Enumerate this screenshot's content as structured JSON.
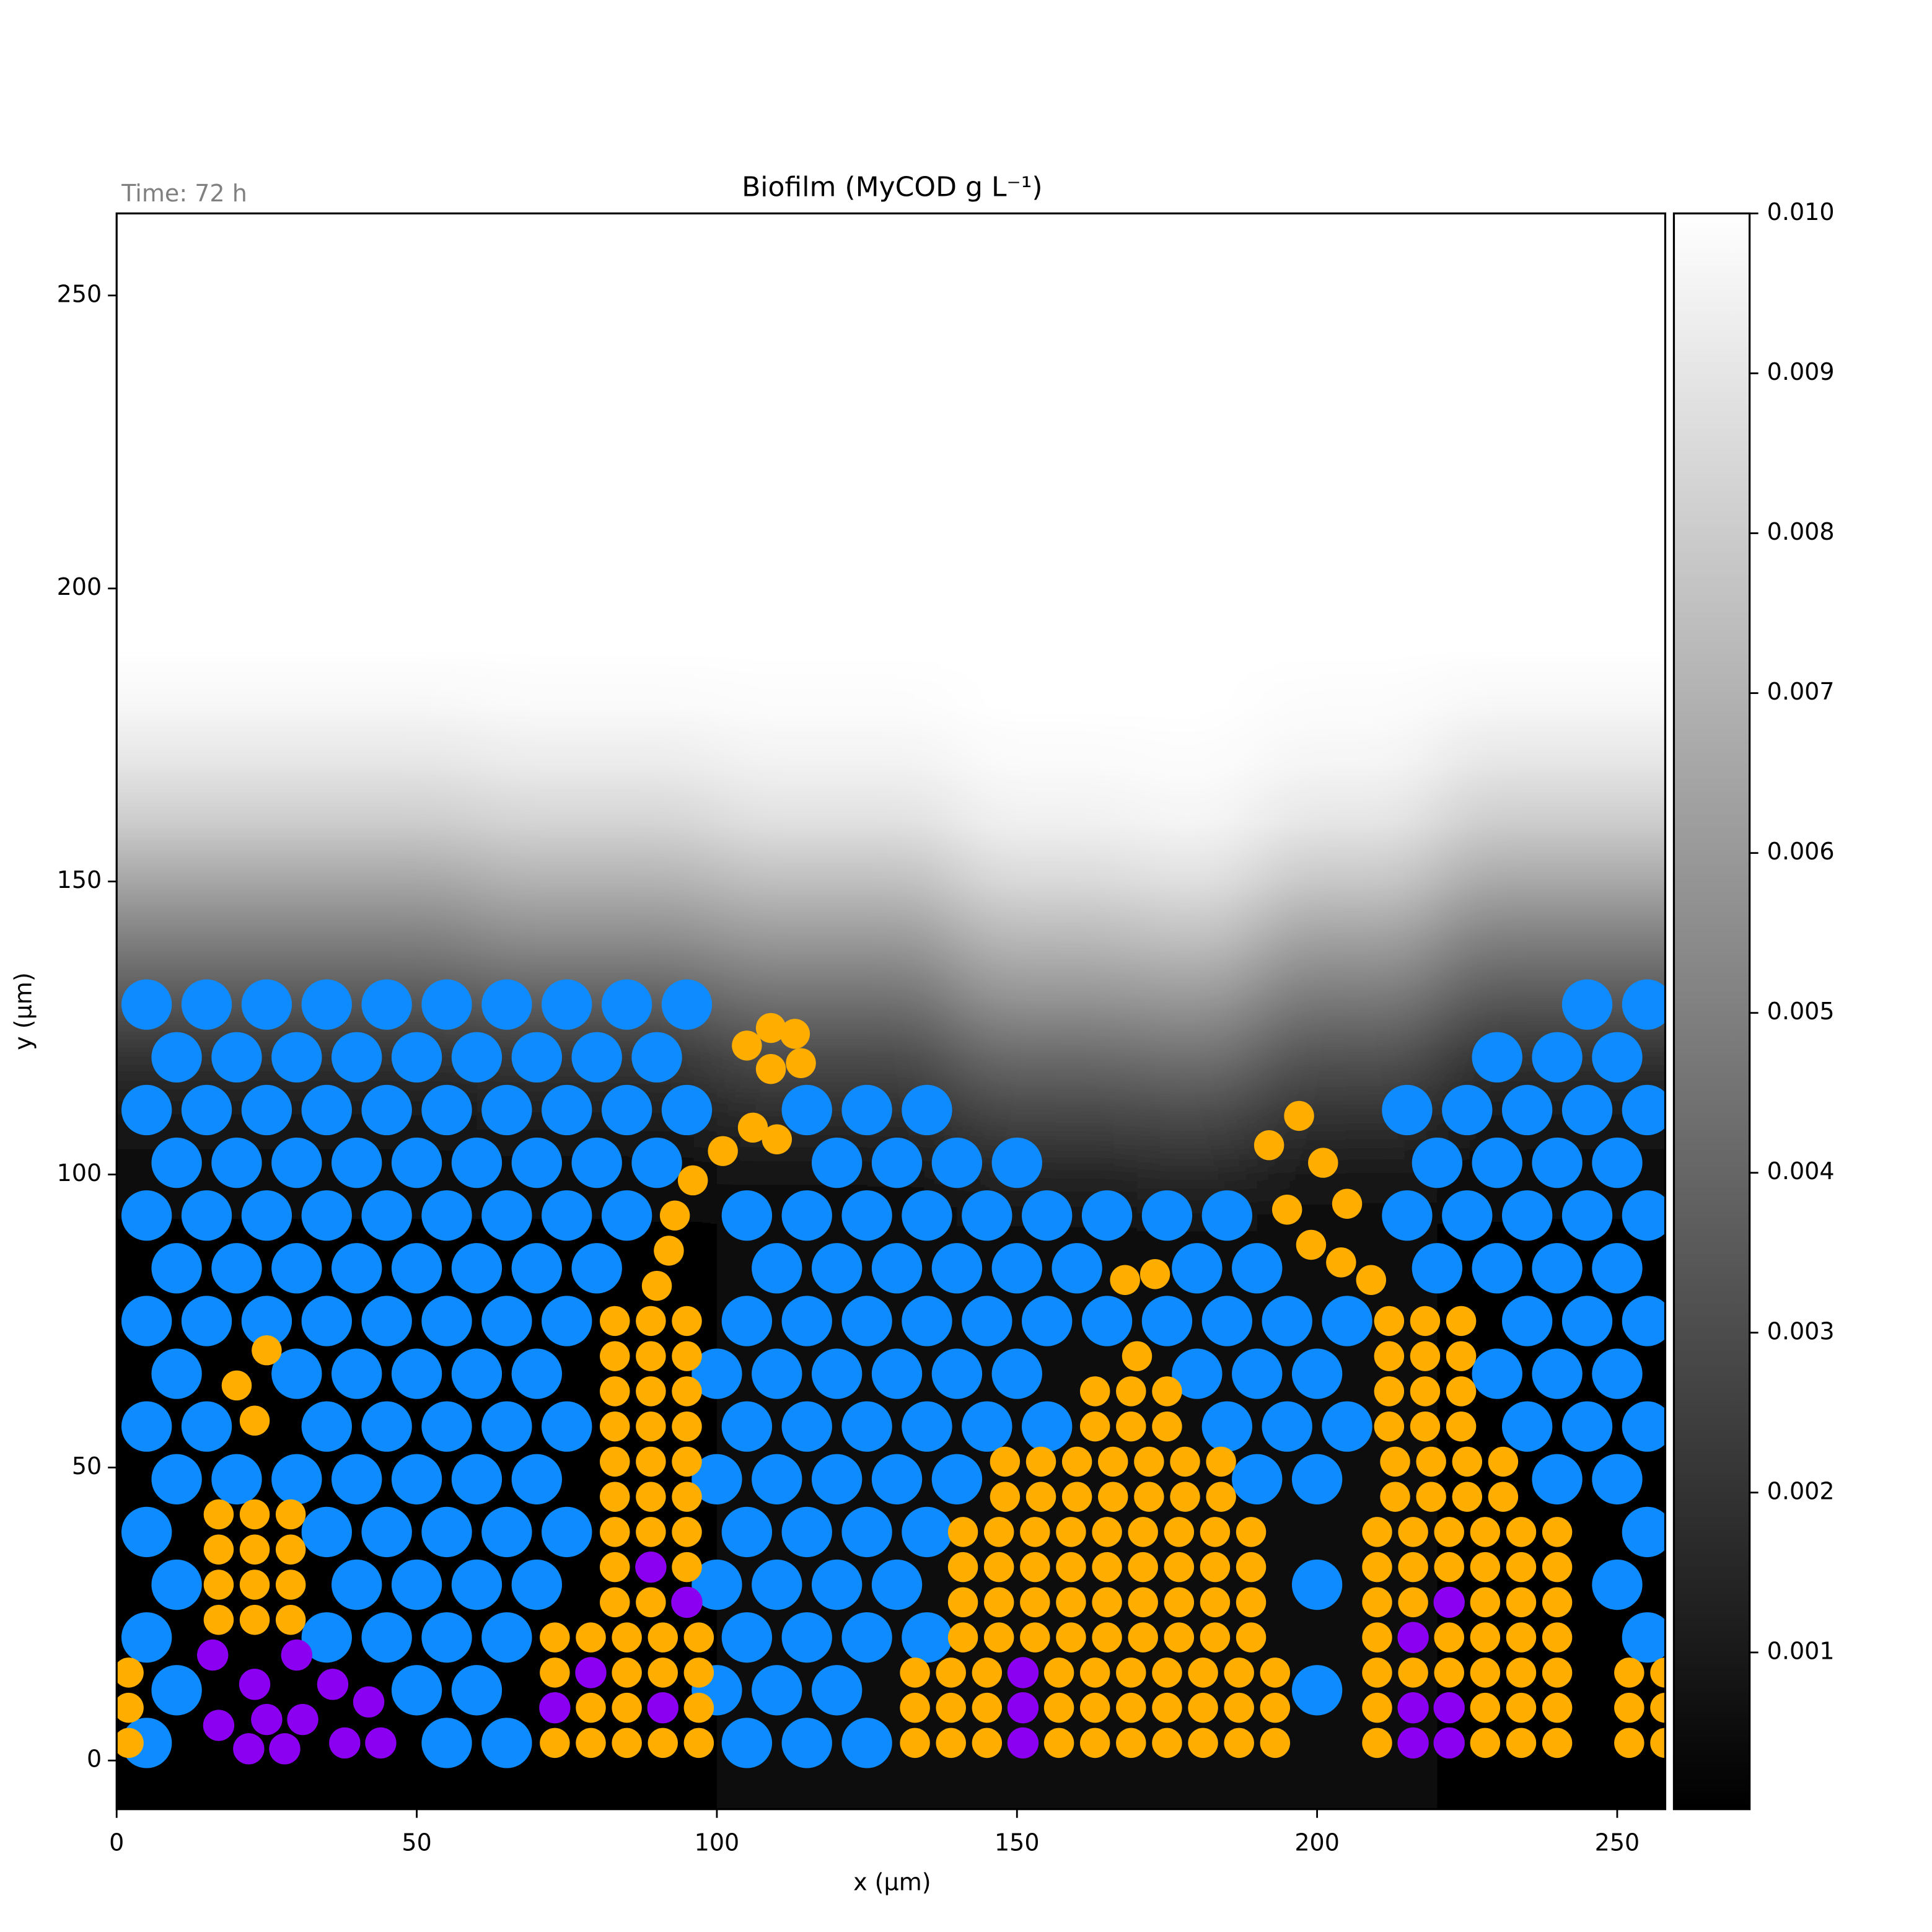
{
  "chart_data": {
    "type": "scatter",
    "title": "Biofilm (MyCOD g L⁻¹)",
    "annotation": "Time: 72 h",
    "xlabel": "x (µm)",
    "ylabel": "y (µm)",
    "xlim": [
      0,
      258
    ],
    "ylim": [
      -8.3,
      264
    ],
    "xticks": [
      0,
      50,
      100,
      150,
      200,
      250
    ],
    "yticks": [
      0,
      50,
      100,
      150,
      200,
      250
    ],
    "heatmap": {
      "x": [
        0,
        40,
        80,
        120,
        160,
        180,
        200,
        240,
        258
      ],
      "y": [
        90,
        100,
        110,
        120,
        130,
        140,
        150,
        160,
        170,
        180,
        190
      ],
      "values": [
        [
          0.0002,
          0.0005,
          0.001,
          0.002,
          0.0035,
          0.005,
          0.0065,
          0.008,
          0.009,
          0.0097,
          0.01
        ],
        [
          0.0002,
          0.0005,
          0.001,
          0.002,
          0.0035,
          0.005,
          0.0065,
          0.008,
          0.009,
          0.0097,
          0.01
        ],
        [
          0.0002,
          0.0005,
          0.0012,
          0.0022,
          0.0038,
          0.0055,
          0.007,
          0.0083,
          0.0092,
          0.0098,
          0.01
        ],
        [
          0.0003,
          0.0008,
          0.0018,
          0.003,
          0.0045,
          0.006,
          0.0075,
          0.0088,
          0.0095,
          0.0099,
          0.01
        ],
        [
          0.0006,
          0.0015,
          0.0028,
          0.0042,
          0.0058,
          0.0072,
          0.0085,
          0.0094,
          0.0098,
          0.01,
          0.01
        ],
        [
          0.0007,
          0.0017,
          0.003,
          0.0045,
          0.006,
          0.0075,
          0.0088,
          0.0096,
          0.0099,
          0.01,
          0.01
        ],
        [
          0.0004,
          0.001,
          0.002,
          0.0033,
          0.0048,
          0.0063,
          0.0078,
          0.009,
          0.0096,
          0.0099,
          0.01
        ],
        [
          0.0002,
          0.0005,
          0.001,
          0.002,
          0.0035,
          0.005,
          0.0066,
          0.008,
          0.009,
          0.0097,
          0.01
        ],
        [
          0.0002,
          0.0005,
          0.001,
          0.002,
          0.0035,
          0.005,
          0.0066,
          0.008,
          0.009,
          0.0097,
          0.01
        ]
      ]
    },
    "colorbar": {
      "colormap": "gray",
      "clim": [
        2e-05,
        0.01
      ],
      "ticks": [
        0.001,
        0.002,
        0.003,
        0.004,
        0.005,
        0.006,
        0.007,
        0.008,
        0.009,
        {
          "value": 0.01,
          "label": "0.010"
        }
      ]
    },
    "series": [
      {
        "color": "#0d8bff",
        "size": 4.2,
        "x": [
          5,
          55,
          65,
          105,
          115,
          125,
          10,
          50,
          60,
          100,
          110,
          120,
          200,
          5,
          35,
          45,
          55,
          65,
          105,
          115,
          125,
          135,
          255,
          10,
          40,
          50,
          60,
          70,
          100,
          110,
          120,
          130,
          200,
          250,
          5,
          35,
          45,
          55,
          65,
          75,
          105,
          115,
          125,
          135,
          255,
          10,
          20,
          30,
          40,
          50,
          60,
          70,
          100,
          110,
          120,
          130,
          140,
          190,
          200,
          240,
          250,
          5,
          15,
          35,
          45,
          55,
          65,
          75,
          105,
          115,
          125,
          135,
          145,
          155,
          185,
          195,
          205,
          235,
          245,
          255,
          10,
          30,
          40,
          50,
          60,
          70,
          100,
          110,
          120,
          130,
          140,
          150,
          180,
          190,
          200,
          230,
          240,
          250,
          5,
          15,
          25,
          35,
          45,
          55,
          65,
          75,
          105,
          115,
          125,
          135,
          145,
          155,
          165,
          175,
          185,
          195,
          205,
          235,
          245,
          255,
          10,
          20,
          30,
          40,
          50,
          60,
          70,
          80,
          110,
          120,
          130,
          140,
          150,
          160,
          180,
          190,
          220,
          230,
          240,
          250,
          5,
          15,
          25,
          35,
          45,
          55,
          65,
          75,
          85,
          105,
          115,
          125,
          135,
          145,
          155,
          165,
          175,
          185,
          215,
          225,
          235,
          245,
          255,
          10,
          20,
          30,
          40,
          50,
          60,
          70,
          80,
          90,
          120,
          130,
          140,
          150,
          220,
          230,
          240,
          250,
          5,
          15,
          25,
          35,
          45,
          55,
          65,
          75,
          85,
          95,
          115,
          125,
          135,
          215,
          225,
          235,
          245,
          255,
          10,
          20,
          30,
          40,
          50,
          60,
          70,
          80,
          90,
          230,
          240,
          250,
          5,
          15,
          25,
          35,
          45,
          55,
          65,
          75,
          85,
          95,
          245,
          255
        ],
        "values": [
          3,
          3,
          3,
          3,
          3,
          3,
          12,
          12,
          12,
          12,
          12,
          12,
          12,
          21,
          21,
          21,
          21,
          21,
          21,
          21,
          21,
          21,
          21,
          30,
          30,
          30,
          30,
          30,
          30,
          30,
          30,
          30,
          30,
          30,
          39,
          39,
          39,
          39,
          39,
          39,
          39,
          39,
          39,
          39,
          39,
          48,
          48,
          48,
          48,
          48,
          48,
          48,
          48,
          48,
          48,
          48,
          48,
          48,
          48,
          48,
          48,
          57,
          57,
          57,
          57,
          57,
          57,
          57,
          57,
          57,
          57,
          57,
          57,
          57,
          57,
          57,
          57,
          57,
          57,
          57,
          66,
          66,
          66,
          66,
          66,
          66,
          66,
          66,
          66,
          66,
          66,
          66,
          66,
          66,
          66,
          66,
          66,
          66,
          75,
          75,
          75,
          75,
          75,
          75,
          75,
          75,
          75,
          75,
          75,
          75,
          75,
          75,
          75,
          75,
          75,
          75,
          75,
          75,
          75,
          75,
          84,
          84,
          84,
          84,
          84,
          84,
          84,
          84,
          84,
          84,
          84,
          84,
          84,
          84,
          84,
          84,
          84,
          84,
          84,
          84,
          93,
          93,
          93,
          93,
          93,
          93,
          93,
          93,
          93,
          93,
          93,
          93,
          93,
          93,
          93,
          93,
          93,
          93,
          93,
          93,
          93,
          93,
          93,
          102,
          102,
          102,
          102,
          102,
          102,
          102,
          102,
          102,
          102,
          102,
          102,
          102,
          102,
          102,
          102,
          102,
          111,
          111,
          111,
          111,
          111,
          111,
          111,
          111,
          111,
          111,
          111,
          111,
          111,
          111,
          111,
          111,
          111,
          111,
          120,
          120,
          120,
          120,
          120,
          120,
          120,
          120,
          120,
          120,
          120,
          120,
          129,
          129,
          129,
          129,
          129,
          129,
          129,
          129,
          129,
          129,
          129,
          129
        ]
      },
      {
        "color": "#ffae00",
        "size": 2.5,
        "x": [
          17,
          23,
          29,
          17,
          23,
          29,
          17,
          23,
          29,
          17,
          23,
          29,
          23,
          20,
          25,
          2,
          2,
          2,
          73,
          79,
          85,
          91,
          97,
          79,
          85,
          97,
          73,
          85,
          91,
          97,
          73,
          79,
          85,
          91,
          97,
          83,
          89,
          83,
          95,
          83,
          89,
          95,
          83,
          89,
          95,
          83,
          89,
          95,
          83,
          89,
          95,
          83,
          89,
          95,
          83,
          89,
          95,
          83,
          89,
          95,
          90,
          92,
          93,
          96,
          101,
          106,
          110,
          105,
          109,
          113,
          114,
          109,
          133,
          139,
          145,
          157,
          163,
          169,
          175,
          181,
          187,
          193,
          133,
          139,
          145,
          157,
          163,
          169,
          175,
          181,
          187,
          193,
          133,
          139,
          145,
          157,
          163,
          169,
          175,
          181,
          187,
          193,
          141,
          147,
          153,
          159,
          165,
          171,
          177,
          183,
          189,
          141,
          147,
          153,
          159,
          165,
          171,
          177,
          183,
          189,
          141,
          147,
          153,
          159,
          165,
          171,
          177,
          183,
          189,
          141,
          147,
          153,
          159,
          165,
          171,
          177,
          183,
          189,
          148,
          154,
          160,
          166,
          172,
          178,
          184,
          148,
          154,
          160,
          166,
          172,
          178,
          184,
          163,
          169,
          175,
          163,
          169,
          175,
          170,
          168,
          173,
          210,
          228,
          234,
          240,
          210,
          228,
          234,
          240,
          210,
          216,
          222,
          228,
          234,
          240,
          210,
          222,
          228,
          234,
          240,
          210,
          216,
          228,
          234,
          240,
          210,
          216,
          222,
          228,
          234,
          240,
          210,
          216,
          222,
          228,
          234,
          240,
          213,
          219,
          225,
          231,
          213,
          219,
          225,
          231,
          212,
          218,
          224,
          212,
          218,
          224,
          212,
          218,
          224,
          212,
          218,
          224,
          209,
          204,
          199,
          195,
          205,
          201,
          192,
          197,
          252,
          258,
          252,
          258,
          252,
          258
        ],
        "values": [
          24,
          24,
          24,
          30,
          30,
          30,
          36,
          36,
          36,
          42,
          42,
          42,
          58,
          64,
          70,
          3,
          9,
          15,
          3,
          3,
          3,
          3,
          3,
          9,
          9,
          9,
          15,
          15,
          15,
          15,
          21,
          21,
          21,
          21,
          21,
          27,
          27,
          33,
          33,
          39,
          39,
          39,
          45,
          45,
          45,
          51,
          51,
          51,
          57,
          57,
          57,
          63,
          63,
          63,
          69,
          69,
          69,
          75,
          75,
          75,
          81,
          87,
          93,
          99,
          104,
          108,
          106,
          122,
          125,
          124,
          119,
          118,
          3,
          3,
          3,
          3,
          3,
          3,
          3,
          3,
          3,
          3,
          9,
          9,
          9,
          9,
          9,
          9,
          9,
          9,
          9,
          9,
          15,
          15,
          15,
          15,
          15,
          15,
          15,
          15,
          15,
          15,
          21,
          21,
          21,
          21,
          21,
          21,
          21,
          21,
          21,
          27,
          27,
          27,
          27,
          27,
          27,
          27,
          27,
          27,
          33,
          33,
          33,
          33,
          33,
          33,
          33,
          33,
          33,
          39,
          39,
          39,
          39,
          39,
          39,
          39,
          39,
          39,
          45,
          45,
          45,
          45,
          45,
          45,
          45,
          51,
          51,
          51,
          51,
          51,
          51,
          51,
          57,
          57,
          57,
          63,
          63,
          63,
          69,
          82,
          83,
          3,
          3,
          3,
          3,
          9,
          9,
          9,
          9,
          15,
          15,
          15,
          15,
          15,
          15,
          21,
          21,
          21,
          21,
          21,
          27,
          27,
          27,
          27,
          27,
          33,
          33,
          33,
          33,
          33,
          33,
          39,
          39,
          39,
          39,
          39,
          39,
          45,
          45,
          45,
          45,
          51,
          51,
          51,
          51,
          57,
          57,
          57,
          63,
          63,
          63,
          69,
          69,
          69,
          75,
          75,
          75,
          82,
          85,
          88,
          94,
          95,
          102,
          105,
          110,
          3,
          3,
          9,
          9,
          15,
          15
        ]
      },
      {
        "color": "#8b00f0",
        "size": 2.6,
        "x": [
          16,
          23,
          30,
          36,
          17,
          25,
          31,
          38,
          44,
          22,
          28,
          42,
          73,
          79,
          91,
          89,
          95,
          151,
          151,
          151,
          216,
          222,
          216,
          222,
          216,
          222
        ],
        "values": [
          18,
          13,
          18,
          13,
          6,
          7,
          7,
          3,
          3,
          2,
          2,
          10,
          9,
          15,
          9,
          33,
          27,
          3,
          9,
          15,
          3,
          3,
          9,
          9,
          21,
          27
        ]
      }
    ]
  }
}
